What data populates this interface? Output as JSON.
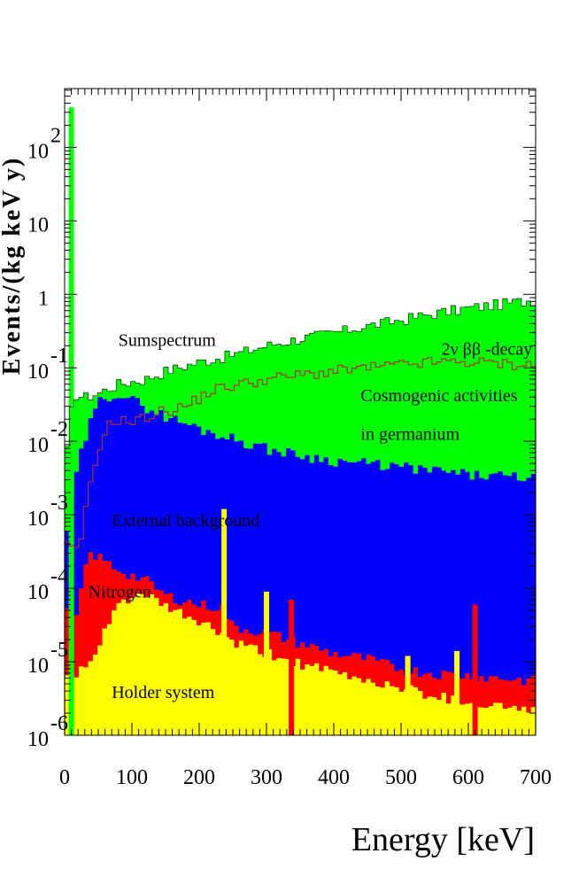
{
  "chart_data": {
    "type": "area",
    "xlabel": "Energy [keV]",
    "ylabel": "Events/(kg keV y)",
    "xlim": [
      0,
      700
    ],
    "ylim_log10": [
      -6,
      2.8
    ],
    "yscale": "log",
    "grid": false,
    "x_ticks": [
      {
        "value": 0,
        "label": "0"
      },
      {
        "value": 100,
        "label": "100"
      },
      {
        "value": 200,
        "label": "200"
      },
      {
        "value": 300,
        "label": "300"
      },
      {
        "value": 400,
        "label": "400"
      },
      {
        "value": 500,
        "label": "500"
      },
      {
        "value": 600,
        "label": "600"
      },
      {
        "value": 700,
        "label": "700"
      }
    ],
    "y_ticks": [
      {
        "value": 1e-06,
        "base": "10",
        "exp": "-6"
      },
      {
        "value": 1e-05,
        "base": "10",
        "exp": "-5"
      },
      {
        "value": 0.0001,
        "base": "10",
        "exp": "-4"
      },
      {
        "value": 0.001,
        "base": "10",
        "exp": "-3"
      },
      {
        "value": 0.01,
        "base": "10",
        "exp": "-2"
      },
      {
        "value": 0.1,
        "base": "10",
        "exp": "-1"
      },
      {
        "value": 1,
        "base": "1",
        "exp": ""
      },
      {
        "value": 10,
        "base": "10",
        "exp": ""
      },
      {
        "value": 100,
        "base": "10",
        "exp": "2"
      }
    ],
    "annotations": [
      {
        "text": "Sumspectrum",
        "x": 80,
        "y": 0.2
      },
      {
        "text": "2ν ββ -decay",
        "x": 560,
        "y": 0.15
      },
      {
        "text": "Cosmogenic activities",
        "x": 440,
        "y": 0.035
      },
      {
        "text": "in germanium",
        "x": 440,
        "y": 0.0105
      },
      {
        "text": "External background",
        "x": 70,
        "y": 0.0007
      },
      {
        "text": "Nitrogen",
        "x": 35,
        "y": 7.5e-05
      },
      {
        "text": "Holder system",
        "x": 70,
        "y": 3.2e-06
      }
    ],
    "colors": {
      "yellow": "#ffff00",
      "red": "#ff0000",
      "blue": "#0000ff",
      "green": "#00ff00",
      "cosmogenic_line": "#b03030"
    },
    "series": [
      {
        "key": "holder",
        "fill": "#ffff00",
        "points": [
          [
            0,
            6e-06
          ],
          [
            15,
            7e-06
          ],
          [
            40,
            9e-06
          ],
          [
            60,
            2.5e-05
          ],
          [
            80,
            6e-05
          ],
          [
            100,
            8e-05
          ],
          [
            120,
            8e-05
          ],
          [
            150,
            5.5e-05
          ],
          [
            200,
            3.5e-05
          ],
          [
            230,
            2.5e-05
          ],
          [
            250,
            1.8e-05
          ],
          [
            300,
            1.3e-05
          ],
          [
            350,
            9.5e-06
          ],
          [
            400,
            7e-06
          ],
          [
            450,
            5.5e-06
          ],
          [
            500,
            4.5e-06
          ],
          [
            550,
            3.5e-06
          ],
          [
            600,
            2.8e-06
          ],
          [
            700,
            2.2e-06
          ]
        ],
        "spikes": [
          [
            237,
            0.0012
          ],
          [
            300,
            9e-05
          ],
          [
            510,
            1.2e-05
          ],
          [
            583,
            1.4e-05
          ]
        ]
      },
      {
        "key": "nitrogen",
        "fill": "#ff0000",
        "points": [
          [
            0,
            5e-05
          ],
          [
            10,
            4e-05
          ],
          [
            15,
            3e-05
          ],
          [
            25,
            9e-05
          ],
          [
            30,
            0.0002
          ],
          [
            40,
            0.0003
          ],
          [
            55,
            0.00025
          ],
          [
            80,
            0.00018
          ],
          [
            100,
            0.00015
          ],
          [
            120,
            0.00013
          ],
          [
            150,
            8e-05
          ],
          [
            200,
            6e-05
          ],
          [
            235,
            5.5e-05
          ],
          [
            250,
            3e-05
          ],
          [
            300,
            2.5e-05
          ],
          [
            350,
            1.8e-05
          ],
          [
            400,
            1.3e-05
          ],
          [
            450,
            1.1e-05
          ],
          [
            500,
            8e-06
          ],
          [
            550,
            7e-06
          ],
          [
            600,
            6.5e-06
          ],
          [
            700,
            5.5e-06
          ]
        ],
        "spikes": [
          [
            337,
            7e-05
          ],
          [
            610,
            6e-05
          ]
        ]
      },
      {
        "key": "external",
        "fill": "#0000ff",
        "points": [
          [
            0,
            0.0004
          ],
          [
            10,
            0.0015
          ],
          [
            20,
            0.005
          ],
          [
            40,
            0.02
          ],
          [
            55,
            0.04
          ],
          [
            80,
            0.045
          ],
          [
            120,
            0.03
          ],
          [
            150,
            0.022
          ],
          [
            200,
            0.015
          ],
          [
            250,
            0.011
          ],
          [
            300,
            0.008
          ],
          [
            350,
            0.0065
          ],
          [
            400,
            0.0055
          ],
          [
            450,
            0.005
          ],
          [
            500,
            0.0045
          ],
          [
            550,
            0.004
          ],
          [
            600,
            0.0035
          ],
          [
            700,
            0.0032
          ]
        ]
      },
      {
        "key": "sum",
        "fill": "#00ff00",
        "points": [
          [
            0,
            0.006
          ],
          [
            8,
            0.01
          ],
          [
            12,
            0.045
          ],
          [
            30,
            0.04
          ],
          [
            50,
            0.045
          ],
          [
            80,
            0.06
          ],
          [
            120,
            0.07
          ],
          [
            150,
            0.09
          ],
          [
            200,
            0.12
          ],
          [
            250,
            0.15
          ],
          [
            300,
            0.2
          ],
          [
            350,
            0.25
          ],
          [
            400,
            0.3
          ],
          [
            450,
            0.37
          ],
          [
            500,
            0.45
          ],
          [
            550,
            0.55
          ],
          [
            600,
            0.65
          ],
          [
            700,
            0.85
          ]
        ],
        "spikes": [
          [
            10,
            350
          ]
        ]
      },
      {
        "key": "cosmogenic",
        "line": "#b03030",
        "points": [
          [
            0,
            0.0004
          ],
          [
            20,
            0.0003
          ],
          [
            40,
            0.003
          ],
          [
            60,
            0.015
          ],
          [
            80,
            0.02
          ],
          [
            100,
            0.018
          ],
          [
            140,
            0.025
          ],
          [
            180,
            0.03
          ],
          [
            220,
            0.05
          ],
          [
            260,
            0.06
          ],
          [
            300,
            0.07
          ],
          [
            350,
            0.08
          ],
          [
            400,
            0.09
          ],
          [
            450,
            0.1
          ],
          [
            500,
            0.11
          ],
          [
            550,
            0.12
          ],
          [
            600,
            0.12
          ],
          [
            700,
            0.11
          ]
        ]
      }
    ]
  }
}
